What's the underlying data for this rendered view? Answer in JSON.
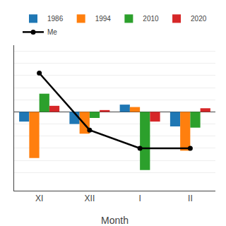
{
  "chart_data": {
    "type": "bar",
    "categories": [
      "XI",
      "XII",
      "I",
      "II"
    ],
    "xlabel": "Month",
    "series": [
      {
        "name": "1986",
        "values": [
          -0.8,
          -1.0,
          0.6,
          -1.2
        ]
      },
      {
        "name": "1994",
        "values": [
          -3.8,
          -1.8,
          0.4,
          -3.2
        ]
      },
      {
        "name": "2010",
        "values": [
          1.5,
          -0.5,
          -4.8,
          -1.3
        ]
      },
      {
        "name": "2020",
        "values": [
          0.5,
          0.15,
          -0.8,
          0.3
        ]
      },
      {
        "name": "Me",
        "type": "line",
        "color": "black",
        "marker": "circle",
        "line_style": "solid",
        "values": [
          3.2,
          -1.5,
          -3.0,
          -3.0
        ]
      }
    ],
    "ylim": [
      -6.5,
      5.5
    ],
    "yticks": [
      -5,
      -4,
      -3,
      -2,
      -1,
      0,
      1,
      2,
      3,
      4,
      5
    ],
    "grid": true,
    "legend": "top",
    "tick_labels": "x"
  }
}
